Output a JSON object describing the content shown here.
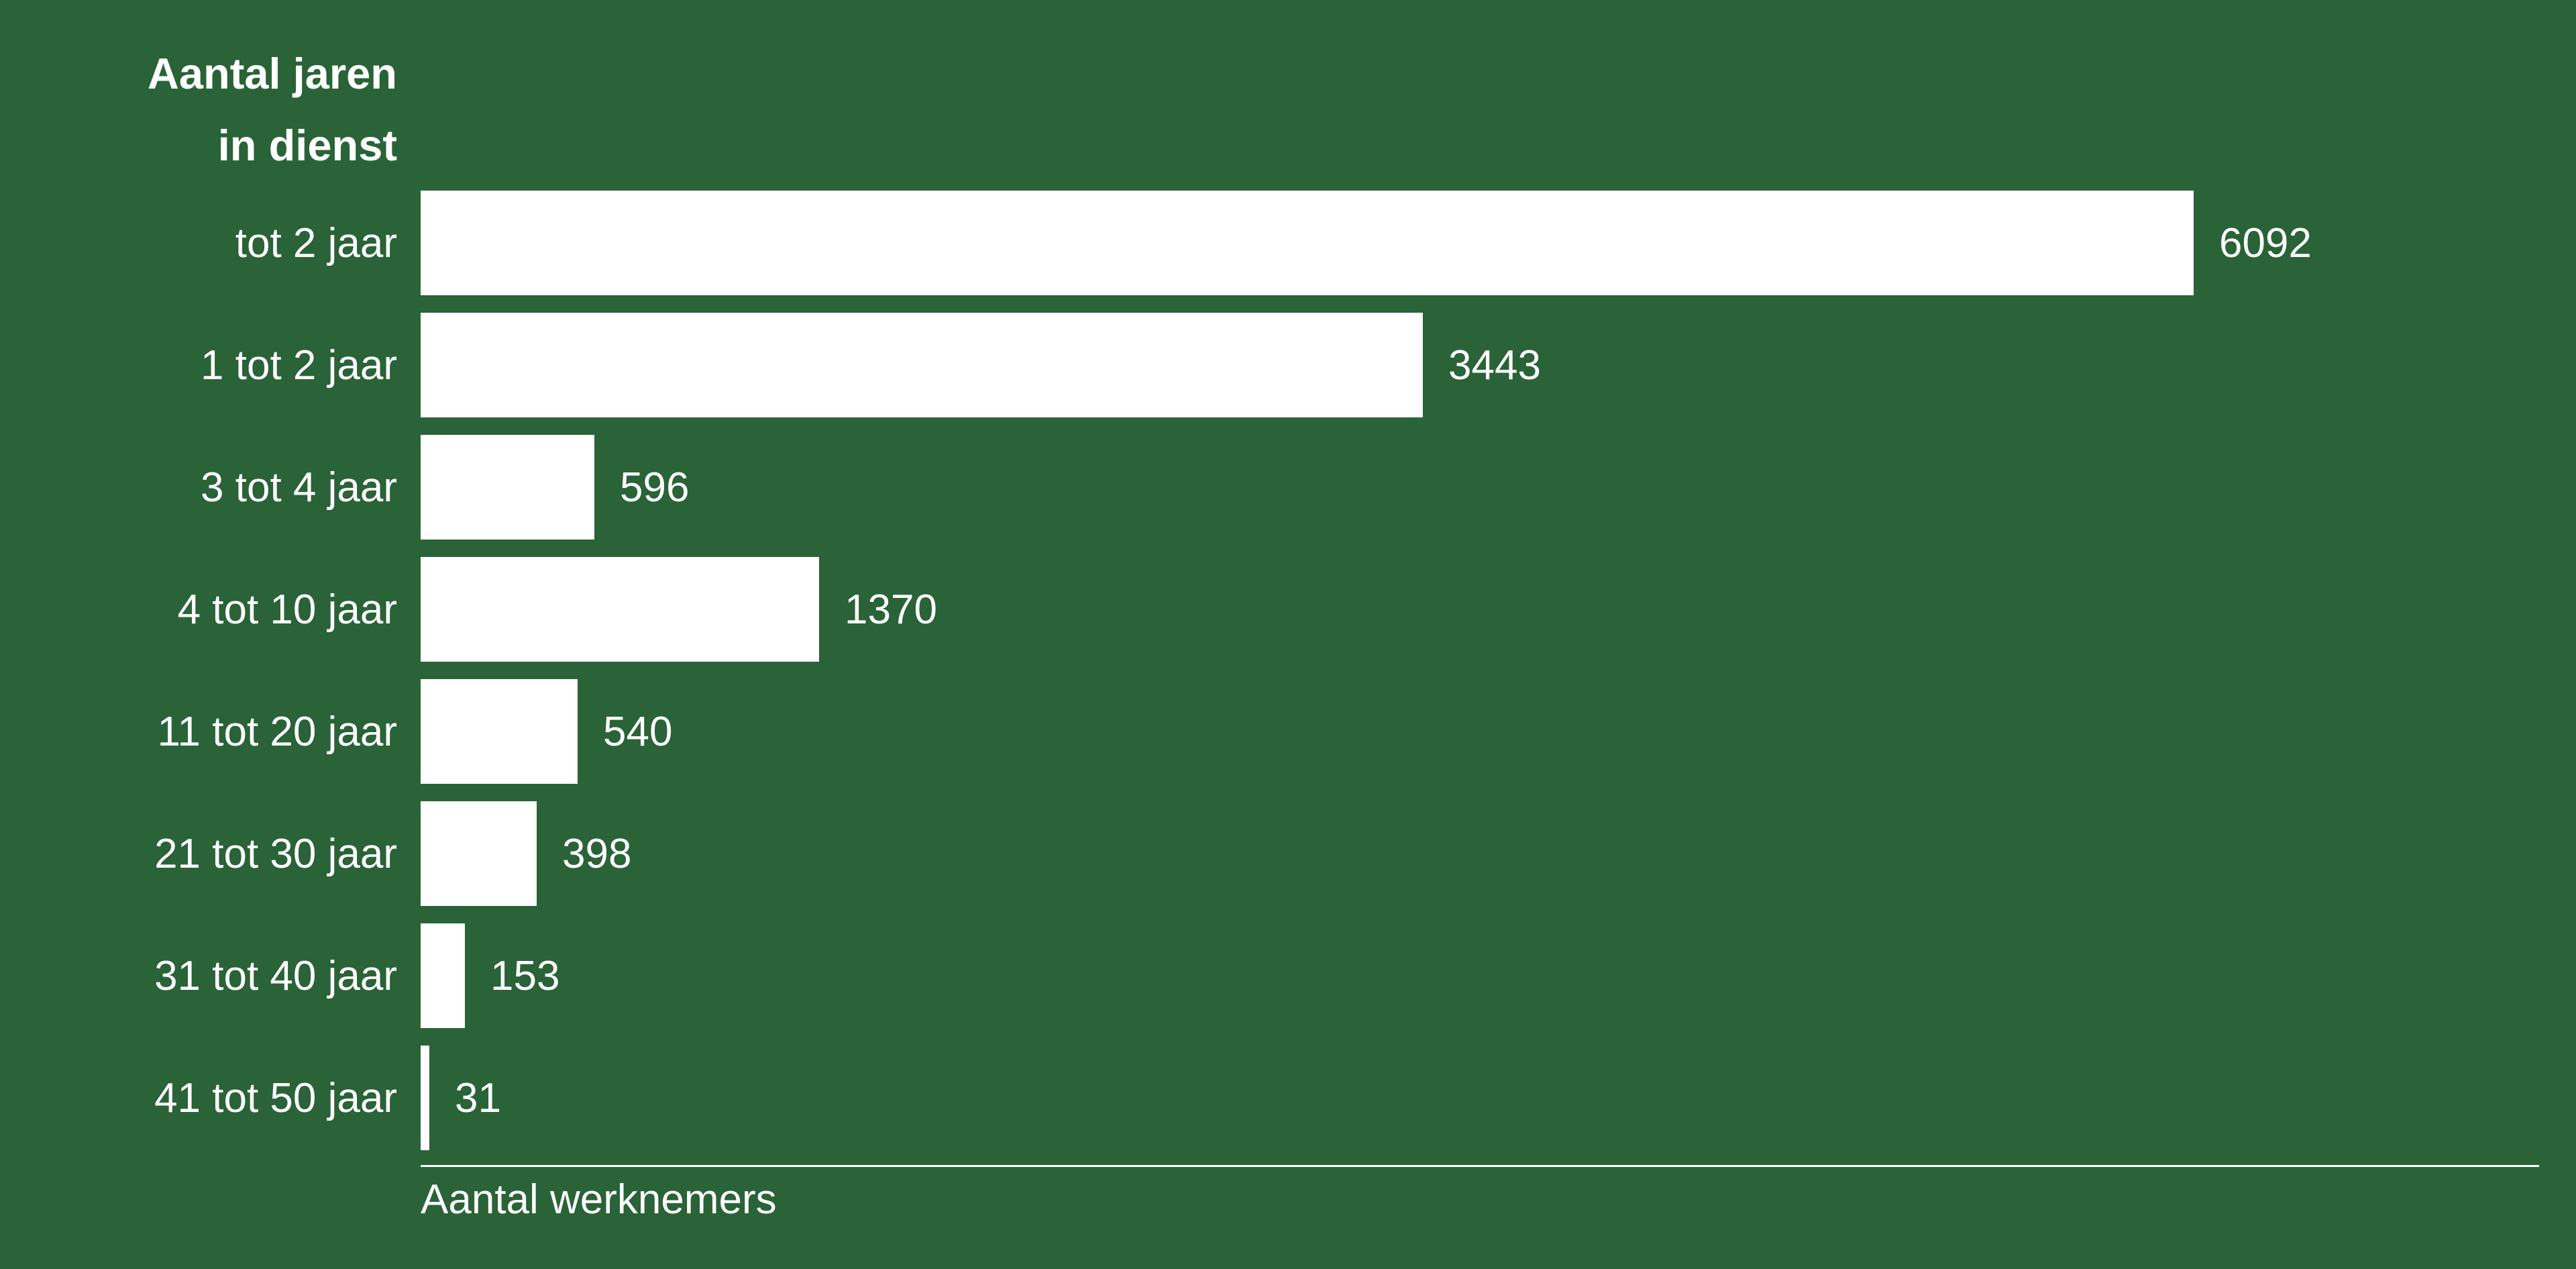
{
  "chart_data": {
    "type": "bar",
    "orientation": "horizontal",
    "title": "Aantal jaren in dienst",
    "title_lines": [
      "Aantal jaren",
      "in dienst"
    ],
    "xlabel": "Aantal werknemers",
    "ylabel": "",
    "categories": [
      "tot 2 jaar",
      "1 tot 2 jaar",
      "3 tot 4 jaar",
      "4 tot 10 jaar",
      "11 tot 20 jaar",
      "21 tot 30 jaar",
      "31 tot 40 jaar",
      "41 tot 50 jaar"
    ],
    "values": [
      6092,
      3443,
      596,
      1370,
      540,
      398,
      153,
      31
    ],
    "value_labels": [
      "6092",
      "3443",
      "596",
      "1370",
      "540",
      "398",
      "153",
      "31"
    ],
    "xlim": [
      0,
      7280
    ],
    "grid": false,
    "legend": false,
    "value_labels_position": "right-of-bar",
    "colors": {
      "background": "#296337",
      "bar": "#FFFFFF",
      "text": "#FFFFFF",
      "axis_line": "#FFFFFF"
    }
  }
}
